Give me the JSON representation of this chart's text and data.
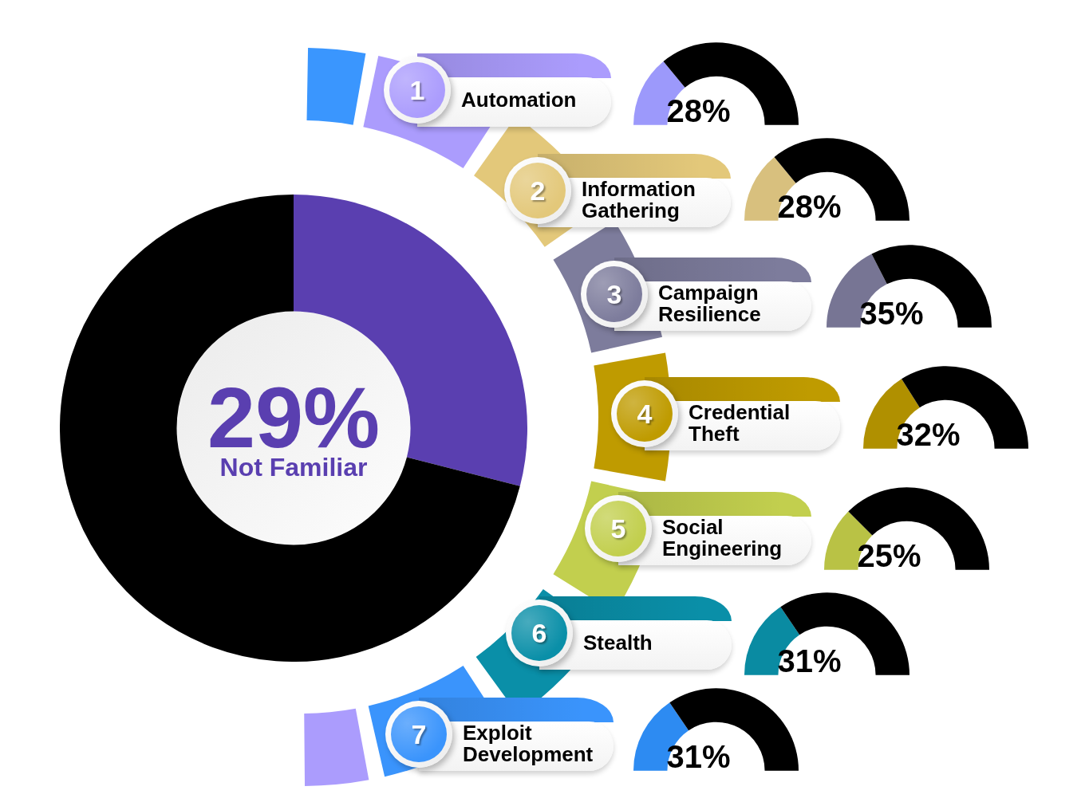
{
  "chart_data": [
    {
      "type": "donut",
      "categories": [
        "Not Familiar",
        null
      ],
      "values": [
        29,
        71
      ],
      "colors": [
        "#5a3fb0",
        "#000000"
      ],
      "value_labels": [
        "29%",
        null
      ]
    },
    {
      "type": "donut",
      "title": "Automation",
      "categories": [
        null,
        null
      ],
      "values": [
        28,
        72
      ],
      "colors": [
        "#9c99fb",
        "#000000"
      ],
      "value_labels": [
        "28%",
        null
      ],
      "annotations": [
        "1"
      ]
    },
    {
      "type": "donut",
      "title": "Information Gathering",
      "categories": [
        null,
        null
      ],
      "values": [
        28,
        72
      ],
      "colors": [
        "#d8c07e",
        "#000000"
      ],
      "value_labels": [
        "28%",
        null
      ],
      "annotations": [
        "2"
      ]
    },
    {
      "type": "donut",
      "title": "Campaign Resilience",
      "categories": [
        null,
        null
      ],
      "values": [
        35,
        65
      ],
      "colors": [
        "#777594",
        "#000000"
      ],
      "value_labels": [
        "35%",
        null
      ],
      "annotations": [
        "3"
      ]
    },
    {
      "type": "donut",
      "title": "Credential Theft",
      "categories": [
        null,
        null
      ],
      "values": [
        32,
        68
      ],
      "colors": [
        "#b09000",
        "#000000"
      ],
      "value_labels": [
        "32%",
        null
      ],
      "annotations": [
        "4"
      ]
    },
    {
      "type": "donut",
      "title": "Social Engineering",
      "categories": [
        null,
        null
      ],
      "values": [
        25,
        75
      ],
      "colors": [
        "#b9c245",
        "#000000"
      ],
      "value_labels": [
        "25%",
        null
      ],
      "annotations": [
        "5"
      ]
    },
    {
      "type": "donut",
      "title": "Stealth",
      "categories": [
        null,
        null
      ],
      "values": [
        31,
        69
      ],
      "colors": [
        "#0a8ba2",
        "#000000"
      ],
      "value_labels": [
        "31%",
        null
      ],
      "annotations": [
        "6"
      ]
    },
    {
      "type": "donut",
      "title": "Exploit Development",
      "categories": [
        null,
        null
      ],
      "values": [
        31,
        69
      ],
      "colors": [
        "#2d8bf2",
        "#000000"
      ],
      "value_labels": [
        "31%",
        null
      ],
      "annotations": [
        "7"
      ]
    }
  ]
}
